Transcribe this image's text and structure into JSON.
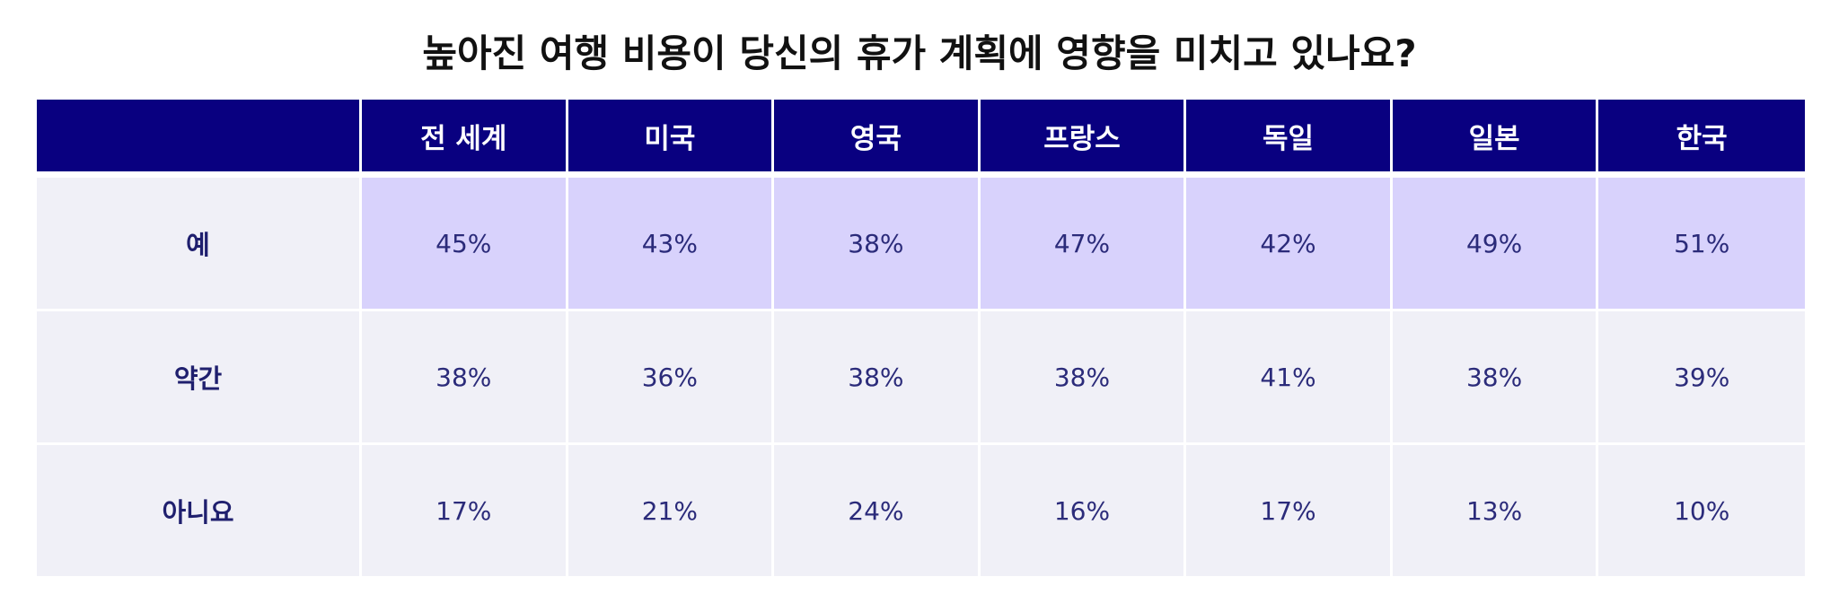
{
  "chart_data": {
    "type": "table",
    "title": "높아진 여행 비용이 당신의 휴가 계획에 영향을 미치고 있나요?",
    "columns": [
      "전 세계",
      "미국",
      "영국",
      "프랑스",
      "독일",
      "일본",
      "한국"
    ],
    "rows": [
      {
        "label": "예",
        "values": [
          "45%",
          "43%",
          "38%",
          "47%",
          "42%",
          "49%",
          "51%"
        ],
        "highlighted": true
      },
      {
        "label": "약간",
        "values": [
          "38%",
          "36%",
          "38%",
          "38%",
          "41%",
          "38%",
          "39%"
        ],
        "highlighted": false
      },
      {
        "label": "아니요",
        "values": [
          "17%",
          "21%",
          "24%",
          "16%",
          "17%",
          "13%",
          "10%"
        ],
        "highlighted": false
      }
    ]
  },
  "colors": {
    "header_bg": "#090080",
    "highlight_row_bg": "#d8d2fc",
    "row_bg": "#f0f0f7",
    "cell_text": "#2b2b7a"
  }
}
